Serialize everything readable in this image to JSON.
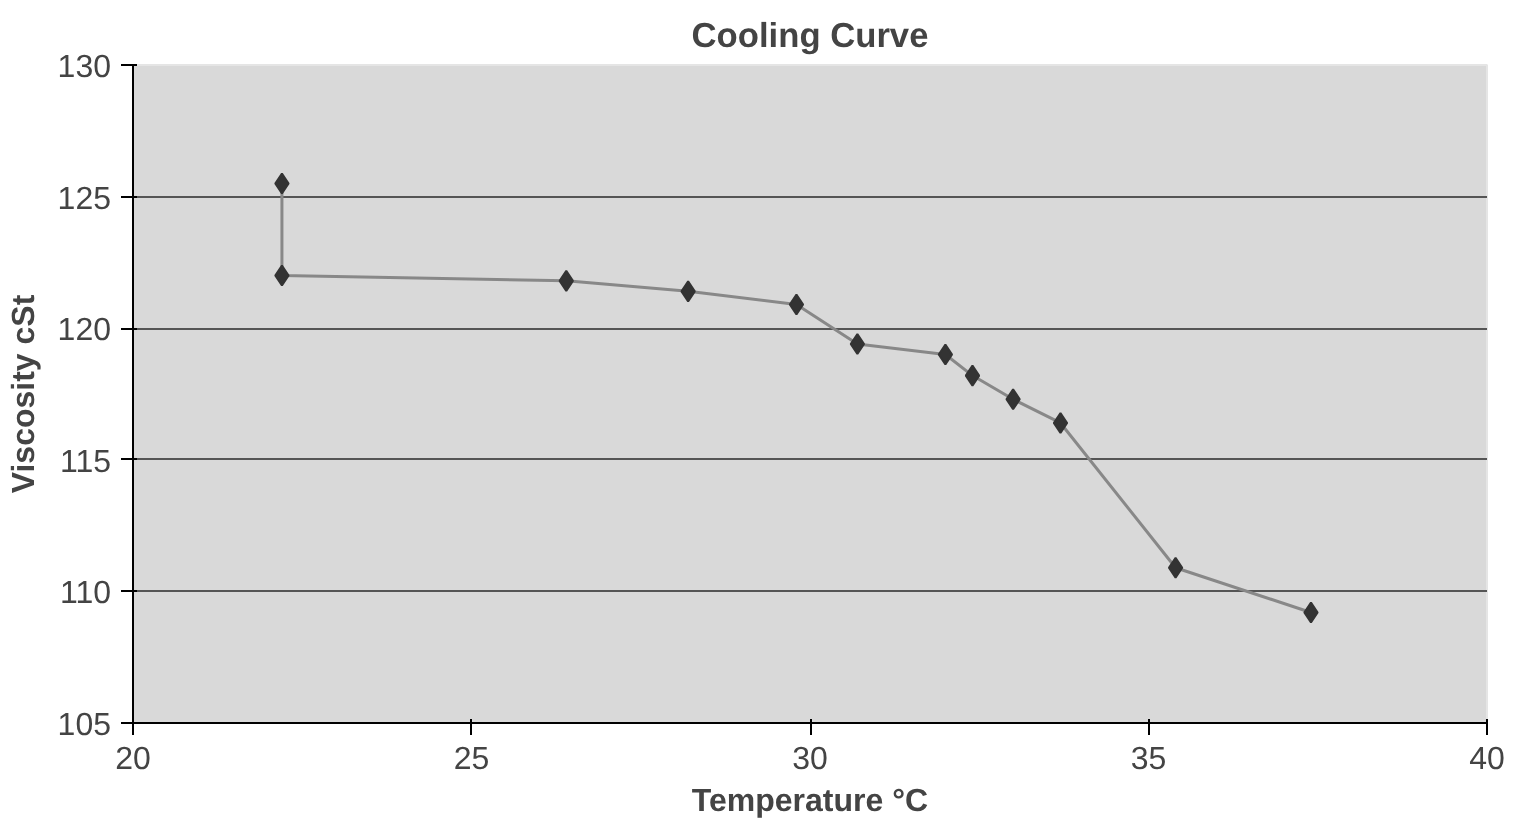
{
  "chart_data": {
    "type": "line",
    "title": "Cooling Curve",
    "xlabel": "Temperature °C",
    "ylabel": "Viscosity cSt",
    "x": [
      22.2,
      22.2,
      26.4,
      28.2,
      29.8,
      30.7,
      32.0,
      32.4,
      33.0,
      33.7,
      35.4,
      37.4
    ],
    "series": [
      {
        "color": "#333333",
        "values": [
          125.5,
          122.0,
          121.8,
          121.4,
          120.9,
          119.4,
          119.0,
          118.2,
          117.3,
          116.4,
          110.9,
          109.2
        ]
      }
    ],
    "xlim": [
      20,
      40
    ],
    "xticks": [
      20,
      25,
      30,
      35,
      40
    ],
    "ylim": [
      105,
      130
    ],
    "yticks": [
      105,
      110,
      115,
      120,
      125,
      130
    ],
    "grid": "y",
    "marker": "diamond",
    "line_style": "solid"
  }
}
